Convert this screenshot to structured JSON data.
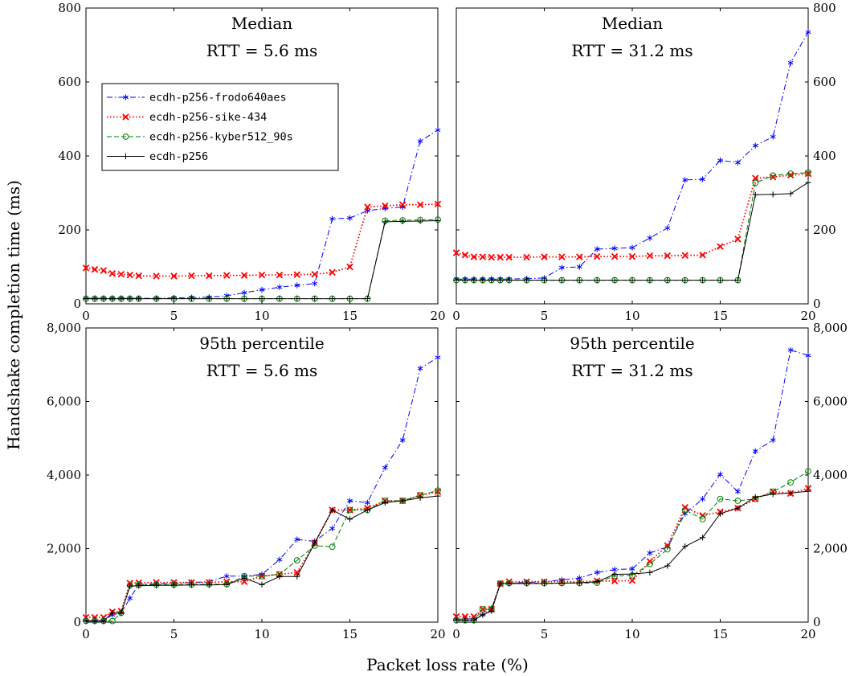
{
  "figure": {
    "ylabel": "Handshake completion time (ms)",
    "xlabel": "Packet loss rate (%)"
  },
  "legend": [
    {
      "name": "ecdh-p256-frodo640aes",
      "color": "#0000ff",
      "marker": "asterisk",
      "dash": "dashdot"
    },
    {
      "name": "ecdh-p256-sike-434",
      "color": "#ff0000",
      "marker": "x",
      "dash": "dotted"
    },
    {
      "name": "ecdh-p256-kyber512_90s",
      "color": "#008000",
      "marker": "circle",
      "dash": "dashed"
    },
    {
      "name": "ecdh-p256",
      "color": "#000000",
      "marker": "plus",
      "dash": "solid"
    }
  ],
  "chart_data": [
    {
      "type": "line",
      "title": [
        "Median",
        "RTT = 5.6 ms"
      ],
      "xlim": [
        0,
        20
      ],
      "ylim": [
        0,
        800
      ],
      "xticks": [
        0,
        5,
        10,
        15,
        20
      ],
      "yticks": [
        0,
        200,
        400,
        600,
        800
      ],
      "ytick_labels": [
        "0",
        "200",
        "400",
        "600",
        "800"
      ],
      "x": [
        0,
        0.5,
        1,
        1.5,
        2,
        2.5,
        3,
        4,
        5,
        6,
        7,
        8,
        9,
        10,
        11,
        12,
        13,
        14,
        15,
        16,
        17,
        18,
        19,
        20
      ],
      "series": [
        {
          "name": "ecdh-p256-frodo640aes",
          "values": [
            15,
            15,
            15,
            15,
            15,
            15,
            15,
            15,
            16,
            17,
            18,
            22,
            30,
            38,
            45,
            50,
            55,
            230,
            232,
            252,
            258,
            262,
            440,
            470
          ]
        },
        {
          "name": "ecdh-p256-sike-434",
          "values": [
            97,
            93,
            90,
            82,
            80,
            78,
            76,
            75,
            75,
            76,
            76,
            77,
            77,
            78,
            78,
            79,
            80,
            85,
            100,
            262,
            265,
            268,
            268,
            270
          ]
        },
        {
          "name": "ecdh-p256-kyber512_90s",
          "values": [
            14,
            14,
            14,
            14,
            14,
            14,
            14,
            14,
            14,
            14,
            14,
            14,
            14,
            14,
            14,
            14,
            14,
            14,
            14,
            14,
            225,
            226,
            227,
            228
          ]
        },
        {
          "name": "ecdh-p256",
          "values": [
            14,
            14,
            14,
            14,
            14,
            14,
            14,
            14,
            14,
            14,
            14,
            14,
            14,
            14,
            14,
            14,
            14,
            14,
            14,
            14,
            222,
            223,
            224,
            225
          ]
        }
      ]
    },
    {
      "type": "line",
      "title": [
        "Median",
        "RTT = 31.2 ms"
      ],
      "xlim": [
        0,
        20
      ],
      "ylim": [
        0,
        800
      ],
      "xticks": [
        0,
        5,
        10,
        15,
        20
      ],
      "yticks": [
        0,
        200,
        400,
        600,
        800
      ],
      "ytick_labels": [
        "0",
        "200",
        "400",
        "600",
        "800"
      ],
      "x": [
        0,
        0.5,
        1,
        1.5,
        2,
        2.5,
        3,
        4,
        5,
        6,
        7,
        8,
        9,
        10,
        11,
        12,
        13,
        14,
        15,
        16,
        17,
        18,
        19,
        20
      ],
      "series": [
        {
          "name": "ecdh-p256-frodo640aes",
          "values": [
            67,
            67,
            67,
            67,
            67,
            67,
            67,
            68,
            70,
            98,
            100,
            148,
            150,
            152,
            178,
            205,
            335,
            337,
            388,
            382,
            428,
            452,
            652,
            735
          ]
        },
        {
          "name": "ecdh-p256-sike-434",
          "values": [
            138,
            132,
            127,
            127,
            126,
            126,
            126,
            126,
            127,
            127,
            127,
            128,
            128,
            128,
            130,
            130,
            131,
            132,
            155,
            175,
            340,
            343,
            348,
            352
          ]
        },
        {
          "name": "ecdh-p256-kyber512_90s",
          "values": [
            64,
            64,
            64,
            64,
            64,
            64,
            64,
            64,
            64,
            64,
            64,
            64,
            64,
            64,
            64,
            64,
            64,
            64,
            64,
            64,
            327,
            347,
            352,
            355
          ]
        },
        {
          "name": "ecdh-p256",
          "values": [
            64,
            64,
            64,
            64,
            64,
            64,
            64,
            64,
            64,
            64,
            64,
            64,
            64,
            64,
            64,
            64,
            64,
            64,
            64,
            64,
            295,
            296,
            298,
            328
          ]
        }
      ]
    },
    {
      "type": "line",
      "title": [
        "95th percentile",
        "RTT = 5.6 ms"
      ],
      "xlim": [
        0,
        20
      ],
      "ylim": [
        0,
        8000
      ],
      "xticks": [
        0,
        5,
        10,
        15,
        20
      ],
      "yticks": [
        0,
        2000,
        4000,
        6000,
        8000
      ],
      "ytick_labels": [
        "0",
        "2,000",
        "4,000",
        "6,000",
        "8,000"
      ],
      "x": [
        0,
        0.5,
        1,
        1.5,
        2,
        2.5,
        3,
        4,
        5,
        6,
        7,
        8,
        9,
        10,
        11,
        12,
        13,
        14,
        15,
        16,
        17,
        18,
        19,
        20
      ],
      "series": [
        {
          "name": "ecdh-p256-frodo640aes",
          "values": [
            40,
            40,
            40,
            200,
            250,
            650,
            1030,
            1040,
            1050,
            1080,
            1100,
            1250,
            1250,
            1300,
            1700,
            2250,
            2200,
            2550,
            3300,
            3250,
            4200,
            4950,
            6900,
            7200
          ]
        },
        {
          "name": "ecdh-p256-sike-434",
          "values": [
            130,
            130,
            130,
            280,
            300,
            1060,
            1070,
            1080,
            1080,
            1080,
            1080,
            1100,
            1100,
            1250,
            1300,
            1350,
            2150,
            3050,
            3050,
            3100,
            3300,
            3300,
            3450,
            3550
          ]
        },
        {
          "name": "ecdh-p256-kyber512_90s",
          "values": [
            30,
            30,
            30,
            30,
            250,
            1000,
            1010,
            1020,
            1020,
            1020,
            1030,
            1030,
            1250,
            1250,
            1300,
            1680,
            2080,
            2050,
            3050,
            3050,
            3300,
            3300,
            3450,
            3580
          ]
        },
        {
          "name": "ecdh-p256",
          "values": [
            30,
            30,
            30,
            250,
            250,
            980,
            990,
            1000,
            1000,
            1010,
            1010,
            1020,
            1200,
            1020,
            1240,
            1240,
            2150,
            3050,
            2800,
            3050,
            3250,
            3300,
            3380,
            3430
          ]
        }
      ]
    },
    {
      "type": "line",
      "title": [
        "95th percentile",
        "RTT = 31.2 ms"
      ],
      "xlim": [
        0,
        20
      ],
      "ylim": [
        0,
        8000
      ],
      "xticks": [
        0,
        5,
        10,
        15,
        20
      ],
      "yticks": [
        0,
        2000,
        4000,
        6000,
        8000
      ],
      "ytick_labels": [
        "0",
        "2,000",
        "4,000",
        "6,000",
        "8,000"
      ],
      "x": [
        0,
        0.5,
        1,
        1.5,
        2,
        2.5,
        3,
        4,
        5,
        6,
        7,
        8,
        9,
        10,
        11,
        12,
        13,
        14,
        15,
        16,
        17,
        18,
        19,
        20
      ],
      "series": [
        {
          "name": "ecdh-p256-frodo640aes",
          "values": [
            80,
            80,
            100,
            200,
            380,
            1050,
            1060,
            1080,
            1100,
            1150,
            1200,
            1350,
            1430,
            1450,
            1880,
            2050,
            2950,
            3350,
            4020,
            3550,
            4650,
            4950,
            7400,
            7250
          ]
        },
        {
          "name": "ecdh-p256-sike-434",
          "values": [
            150,
            150,
            150,
            350,
            350,
            1050,
            1100,
            1100,
            1100,
            1100,
            1100,
            1120,
            1120,
            1130,
            1650,
            2080,
            3120,
            2900,
            3000,
            3100,
            3350,
            3550,
            3500,
            3640
          ]
        },
        {
          "name": "ecdh-p256-kyber512_90s",
          "values": [
            50,
            50,
            50,
            350,
            350,
            1050,
            1060,
            1060,
            1060,
            1060,
            1060,
            1070,
            1260,
            1270,
            1580,
            1980,
            3050,
            2800,
            3350,
            3300,
            3350,
            3550,
            3800,
            4100
          ]
        },
        {
          "name": "ecdh-p256",
          "values": [
            50,
            50,
            50,
            200,
            300,
            1050,
            1050,
            1050,
            1050,
            1060,
            1070,
            1100,
            1300,
            1310,
            1350,
            1530,
            2060,
            2300,
            2950,
            3100,
            3400,
            3480,
            3510,
            3560
          ]
        }
      ]
    }
  ]
}
